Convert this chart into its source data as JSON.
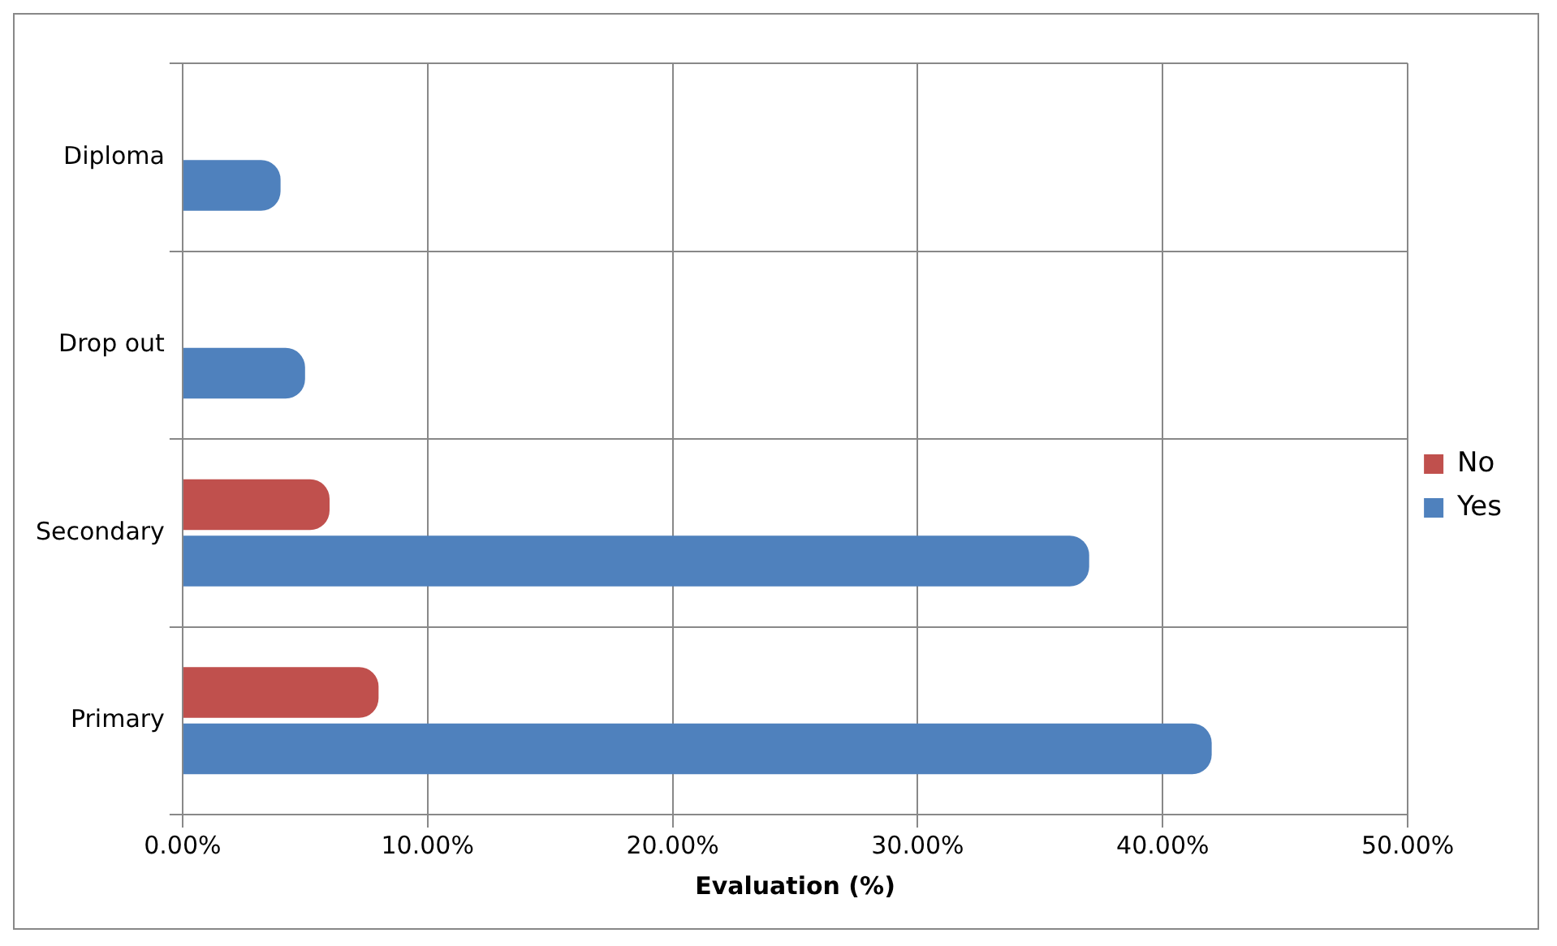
{
  "chart_data": {
    "type": "bar",
    "orientation": "horizontal",
    "xlabel": "Evaluation (%)",
    "categories": [
      "Diploma",
      "Drop out",
      "Secondary",
      "Primary"
    ],
    "series": [
      {
        "name": "No",
        "color": "#c0504d",
        "values": [
          0,
          0,
          6,
          8
        ]
      },
      {
        "name": "Yes",
        "color": "#4f81bd",
        "values": [
          4,
          5,
          37,
          42
        ]
      }
    ],
    "xlim": [
      0,
      50
    ],
    "xticks": [
      {
        "value": 0,
        "label": "0.00%"
      },
      {
        "value": 10,
        "label": "10.00%"
      },
      {
        "value": 20,
        "label": "20.00%"
      },
      {
        "value": 30,
        "label": "30.00%"
      },
      {
        "value": 40,
        "label": "40.00%"
      },
      {
        "value": 50,
        "label": "50.00%"
      }
    ],
    "grid": true,
    "legend": "right"
  }
}
